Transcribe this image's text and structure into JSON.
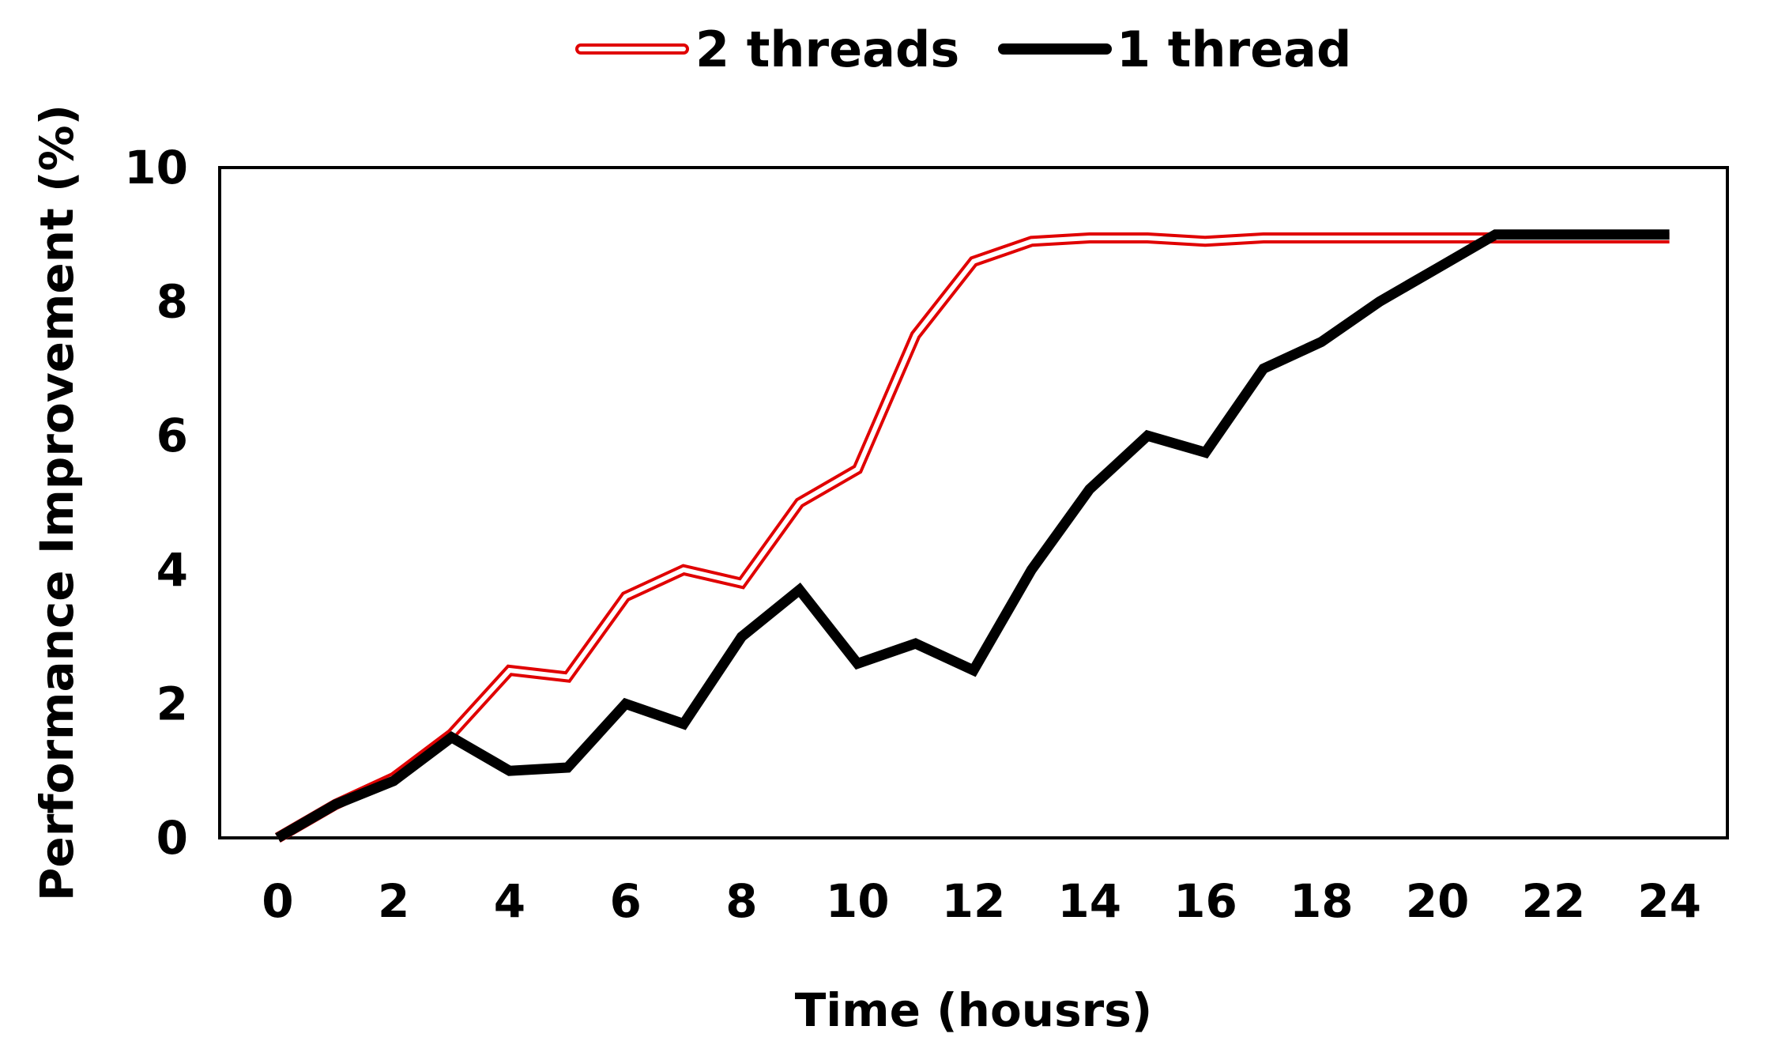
{
  "chart_data": {
    "type": "line",
    "title": "",
    "xlabel": "Time (housrs)",
    "ylabel": "Performance Improvement (%)",
    "xlim": [
      -1,
      25
    ],
    "ylim": [
      0,
      10
    ],
    "xticks": [
      0,
      2,
      4,
      6,
      8,
      10,
      12,
      14,
      16,
      18,
      20,
      22,
      24
    ],
    "yticks": [
      0,
      2,
      4,
      6,
      8,
      10
    ],
    "x": [
      0,
      1,
      2,
      3,
      4,
      5,
      6,
      7,
      8,
      9,
      10,
      11,
      12,
      13,
      14,
      15,
      16,
      17,
      18,
      19,
      20,
      21,
      22,
      23,
      24
    ],
    "legend_position": "top-center",
    "grid": false,
    "series": [
      {
        "name": "2 threads",
        "color": "#e00000",
        "style": "double-line",
        "values": [
          0,
          0.5,
          0.9,
          1.55,
          2.5,
          2.4,
          3.6,
          4.0,
          3.8,
          5.0,
          5.5,
          7.5,
          8.6,
          8.9,
          8.95,
          8.95,
          8.9,
          8.95,
          8.95,
          8.95,
          8.95,
          8.95,
          8.95,
          8.95,
          8.95
        ]
      },
      {
        "name": "1 thread",
        "color": "#000000",
        "style": "solid",
        "values": [
          0,
          0.5,
          0.85,
          1.5,
          1.0,
          1.05,
          2.0,
          1.7,
          3.0,
          3.7,
          2.6,
          2.9,
          2.5,
          4.0,
          5.2,
          6.0,
          5.75,
          7.0,
          7.4,
          8.0,
          8.5,
          9.0,
          9.0,
          9.0,
          9.0
        ]
      }
    ]
  }
}
